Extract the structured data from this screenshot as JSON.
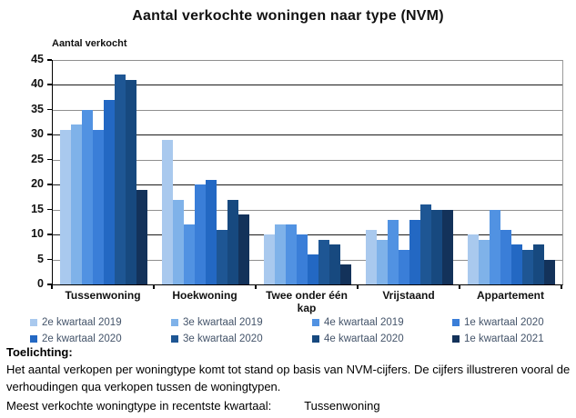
{
  "chart_data": {
    "type": "bar",
    "title": "Aantal verkochte woningen naar type (NVM)",
    "ylabel": "Aantal verkocht",
    "categories": [
      "Tussenwoning",
      "Hoekwoning",
      "Twee onder één kap",
      "Vrijstaand",
      "Appartement"
    ],
    "series": [
      {
        "name": "2e kwartaal 2019",
        "color": "#A9C9EE",
        "values": [
          31,
          29,
          10,
          11,
          10
        ]
      },
      {
        "name": "3e kwartaal 2019",
        "color": "#7FB2E9",
        "values": [
          32,
          17,
          12,
          9,
          9
        ]
      },
      {
        "name": "4e kwartaal 2019",
        "color": "#5192E2",
        "values": [
          35,
          12,
          12,
          13,
          15
        ]
      },
      {
        "name": "1e kwartaal 2020",
        "color": "#3A7ED8",
        "values": [
          31,
          20,
          10,
          7,
          11
        ]
      },
      {
        "name": "2e kwartaal 2020",
        "color": "#2368C3",
        "values": [
          37,
          21,
          6,
          13,
          8
        ]
      },
      {
        "name": "3e kwartaal 2020",
        "color": "#1E5694",
        "values": [
          42,
          11,
          9,
          16,
          7
        ]
      },
      {
        "name": "4e kwartaal 2020",
        "color": "#17497F",
        "values": [
          41,
          17,
          8,
          15,
          8
        ]
      },
      {
        "name": "1e kwartaal 2021",
        "color": "#13325A",
        "values": [
          19,
          14,
          4,
          15,
          5
        ]
      }
    ],
    "ylim": [
      0,
      45
    ],
    "ytick_step": 5,
    "grid": true,
    "legend_position": "bottom",
    "grid_major_color": "#1a1a1a",
    "grid_minor_color": "#8f8f8f"
  },
  "notes": {
    "heading": "Toelichting:",
    "body": "Het aantal verkopen per woningtype komt tot stand op basis van NVM-cijfers. De cijfers illustreren vooral de verhoudingen qua verkopen tussen de woningtypen.",
    "recent_label": "Meest verkochte woningtype in recentste kwartaal:",
    "recent_value": "Tussenwoning"
  }
}
